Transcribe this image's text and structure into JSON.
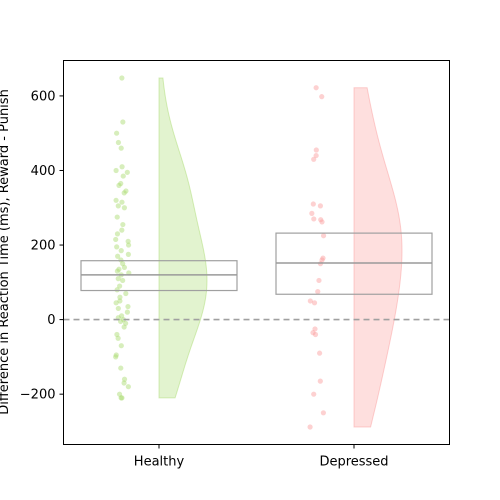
{
  "chart_data": {
    "type": "raincloud",
    "title": "",
    "xlabel": "",
    "ylabel": "Difference in Reaction Time (ms), Reward - Punish",
    "ylim": [
      -335,
      695
    ],
    "yticks": [
      -200,
      0,
      200,
      400,
      600
    ],
    "reference_line": 0,
    "grid": false,
    "groups": [
      {
        "name": "Healthy",
        "color": "#a6d96a",
        "box": {
          "q1": 78,
          "median": 120,
          "q3": 158
        },
        "density_range": [
          -210,
          648
        ],
        "points": [
          648,
          530,
          500,
          475,
          460,
          410,
          400,
          395,
          385,
          365,
          360,
          345,
          340,
          320,
          315,
          305,
          300,
          275,
          255,
          240,
          230,
          215,
          210,
          200,
          195,
          185,
          175,
          170,
          160,
          150,
          140,
          135,
          130,
          125,
          120,
          110,
          105,
          90,
          80,
          70,
          60,
          50,
          45,
          35,
          30,
          20,
          10,
          5,
          0,
          -5,
          -10,
          -20,
          -40,
          -50,
          -70,
          -95,
          -100,
          -130,
          -160,
          -170,
          -180,
          -200,
          -210,
          -210
        ]
      },
      {
        "name": "Depressed",
        "color": "#fb9a99",
        "box": {
          "q1": 68,
          "median": 152,
          "q3": 232
        },
        "density_range": [
          -288,
          622
        ],
        "points": [
          622,
          598,
          455,
          440,
          430,
          310,
          305,
          285,
          270,
          268,
          262,
          225,
          165,
          160,
          150,
          105,
          75,
          50,
          45,
          -25,
          -35,
          -40,
          -90,
          -165,
          -200,
          -250,
          -288
        ]
      }
    ]
  }
}
